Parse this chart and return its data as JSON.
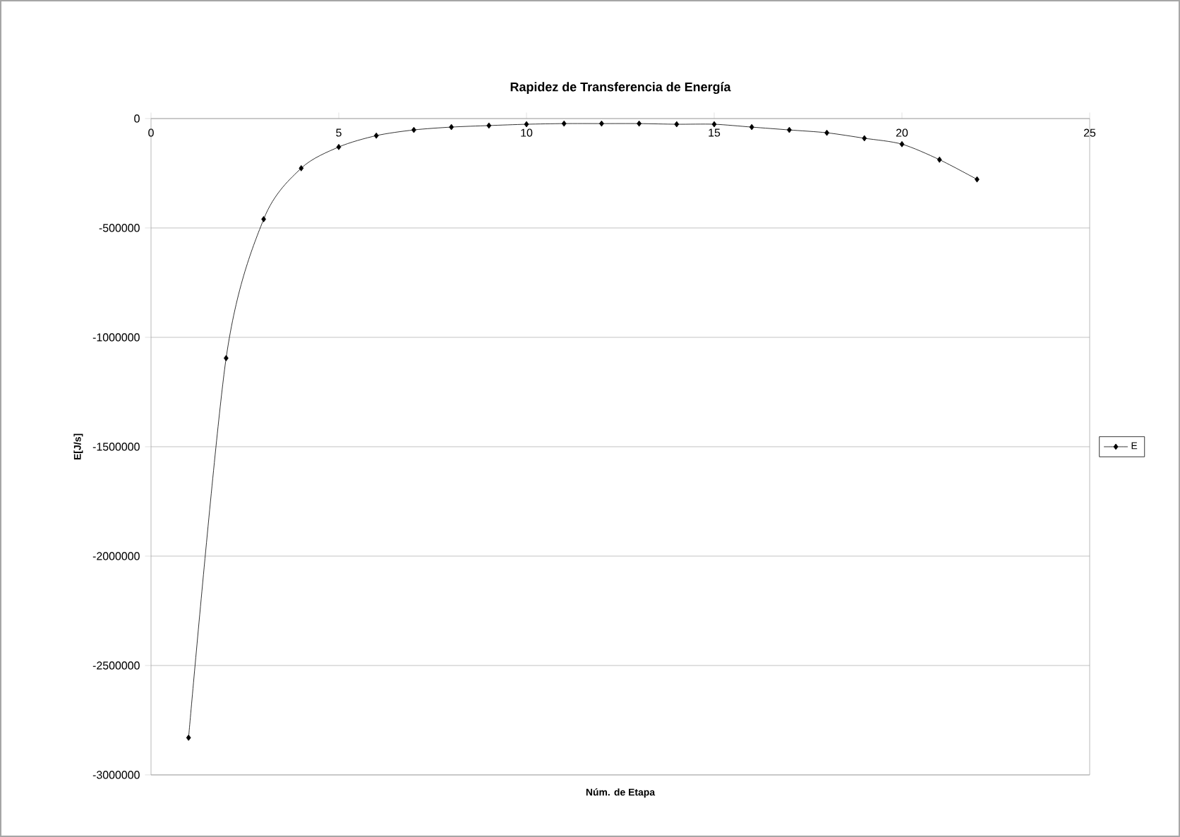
{
  "chart_data": {
    "type": "line",
    "title": "Rapidez de Transferencia de Energía",
    "xlabel": "Núm. de Etapa",
    "ylabel": "E[J/s]",
    "x": [
      1,
      2,
      3,
      4,
      5,
      6,
      7,
      8,
      9,
      10,
      11,
      12,
      13,
      14,
      15,
      16,
      17,
      18,
      19,
      20,
      21,
      22
    ],
    "series": [
      {
        "name": "E",
        "color": "#000000",
        "values": [
          -2830000,
          -1095000,
          -460000,
          -227000,
          -130000,
          -78000,
          -52000,
          -39000,
          -32000,
          -26000,
          -23000,
          -23000,
          -23000,
          -26000,
          -26000,
          -39000,
          -52000,
          -65000,
          -90000,
          -117000,
          -188000,
          -278000
        ]
      }
    ],
    "xlim": [
      0,
      25
    ],
    "xticks": [
      0,
      5,
      10,
      15,
      20,
      25
    ],
    "ylim": [
      -3000000,
      0
    ],
    "yticks": [
      -3000000,
      -2500000,
      -2000000,
      -1500000,
      -1000000,
      -500000,
      0
    ],
    "grid": "y",
    "legend": "right",
    "marker": "diamond",
    "line_style": "solid"
  }
}
